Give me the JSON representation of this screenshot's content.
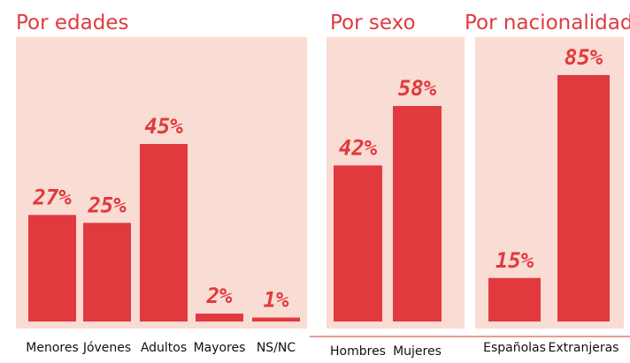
{
  "chart_data": [
    {
      "type": "bar",
      "title": "Por edades",
      "categories": [
        "Menores",
        "Jóvenes",
        "Adultos",
        "Mayores",
        "NS/NC"
      ],
      "values": [
        27,
        25,
        45,
        2,
        1
      ],
      "value_labels": [
        "27%",
        "25%",
        "45%",
        "2%",
        "1%"
      ],
      "color": "#e03a3e"
    },
    {
      "type": "bar",
      "title": "Por sexo",
      "categories": [
        "Hombres",
        "Mujeres"
      ],
      "values": [
        42,
        58
      ],
      "value_labels": [
        "42%",
        "58%"
      ],
      "color": "#e03a3e"
    },
    {
      "type": "bar",
      "title": "Por nacionalidad",
      "categories": [
        "Españolas",
        "Extranjeras"
      ],
      "values": [
        15,
        85
      ],
      "value_labels": [
        "15%",
        "85%"
      ],
      "color": "#e03a3e"
    }
  ]
}
